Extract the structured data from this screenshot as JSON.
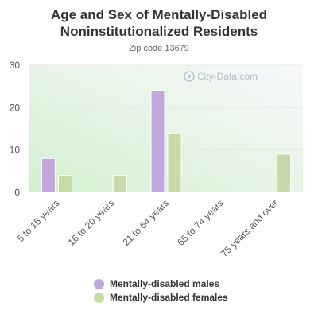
{
  "chart_data": {
    "type": "bar",
    "title": "Age and Sex of Mentally-Disabled Noninstitutionalized Residents",
    "subtitle": "Zip code 13679",
    "categories": [
      "5 to 15 years",
      "16 to 20 years",
      "21 to 64 years",
      "65 to 74 years",
      "75 years and over"
    ],
    "series": [
      {
        "name": "Mentally-disabled males",
        "color": "#c1a8dc",
        "values": [
          8,
          0,
          24,
          0,
          0
        ]
      },
      {
        "name": "Mentally-disabled females",
        "color": "#c7d9a6",
        "values": [
          4,
          4,
          14,
          0,
          9
        ]
      }
    ],
    "ylim": [
      0,
      30
    ],
    "yticks": [
      0,
      10,
      20,
      30
    ],
    "xlabel": "",
    "ylabel": "",
    "grid": true,
    "legend": "bottom"
  },
  "watermark": "City-Data.com"
}
